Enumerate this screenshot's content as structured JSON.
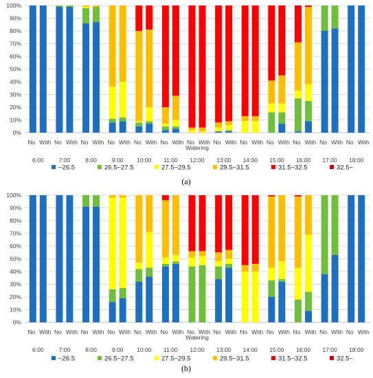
{
  "colors": {
    "c0": "#1f6fc0",
    "c1": "#70bf3c",
    "c2": "#ffff00",
    "c3": "#ffbf00",
    "c4": "#ff0000",
    "c5": "#cc0000",
    "grid": "#d9d9d9",
    "axis": "#bfbfbf"
  },
  "chart_data": [
    {
      "type": "bar",
      "stacked": true,
      "caption": "(a)",
      "ylim": [
        0,
        100
      ],
      "yticks": [
        "0%",
        "10%",
        "20%",
        "30%",
        "40%",
        "50%",
        "60%",
        "70%",
        "80%",
        "90%",
        "100%"
      ],
      "xlabel": "Watering",
      "subcategories": [
        "No",
        "With"
      ],
      "times": [
        "6:00",
        "7:00",
        "8:00",
        "9:00",
        "10:00",
        "11:00",
        "12:00",
        "13:00",
        "14:00",
        "15:00",
        "16:00",
        "17:00",
        "18:00"
      ],
      "legend": [
        "~26.5",
        "26.5~27.5",
        "27.5~29.5",
        "29.5~31.5",
        "31.5~32.5",
        "32.5~"
      ],
      "grid": true,
      "bars": [
        [
          100,
          0,
          0,
          0,
          0,
          0
        ],
        [
          100,
          0,
          0,
          0,
          0,
          0
        ],
        [
          99,
          1,
          0,
          0,
          0,
          0
        ],
        [
          99,
          1,
          0,
          0,
          0,
          0
        ],
        [
          86,
          12,
          1,
          1,
          0,
          0
        ],
        [
          87,
          12,
          0,
          1,
          0,
          0
        ],
        [
          8,
          3,
          25,
          64,
          0,
          0
        ],
        [
          9,
          3,
          28,
          60,
          0,
          0
        ],
        [
          5,
          3,
          1,
          71,
          20,
          0
        ],
        [
          7,
          2,
          11,
          61,
          19,
          0
        ],
        [
          2,
          3,
          2,
          13,
          80,
          0
        ],
        [
          3,
          2,
          5,
          19,
          71,
          0
        ],
        [
          0,
          0,
          2,
          2,
          96,
          0
        ],
        [
          0,
          0,
          1,
          3,
          96,
          0
        ],
        [
          1,
          0,
          3,
          4,
          92,
          0
        ],
        [
          1,
          1,
          4,
          3,
          91,
          0
        ],
        [
          0,
          0,
          9,
          4,
          87,
          0
        ],
        [
          0,
          0,
          9,
          4,
          87,
          0
        ],
        [
          0,
          16,
          7,
          18,
          59,
          0
        ],
        [
          7,
          9,
          7,
          22,
          55,
          0
        ],
        [
          1,
          26,
          6,
          38,
          28,
          1
        ],
        [
          9,
          16,
          13,
          61,
          0,
          1
        ],
        [
          80,
          20,
          0,
          0,
          0,
          0
        ],
        [
          82,
          18,
          0,
          0,
          0,
          0
        ],
        [
          100,
          0,
          0,
          0,
          0,
          0
        ],
        [
          100,
          0,
          0,
          0,
          0,
          0
        ]
      ]
    },
    {
      "type": "bar",
      "stacked": true,
      "caption": "(b)",
      "ylim": [
        0,
        100
      ],
      "yticks": [
        "0%",
        "10%",
        "20%",
        "30%",
        "40%",
        "50%",
        "60%",
        "70%",
        "80%",
        "90%",
        "100%"
      ],
      "xlabel": "Watering",
      "subcategories": [
        "No",
        "With"
      ],
      "times": [
        "6:00",
        "7:00",
        "8:00",
        "9:00",
        "10:00",
        "11:00",
        "12:00",
        "13:00",
        "14:00",
        "15:00",
        "16:00",
        "17:00",
        "18:00"
      ],
      "legend": [
        "~26.5",
        "26.5~27.5",
        "27.5~29.5",
        "29.5~31.5",
        "31.5~32.5",
        "32.5~"
      ],
      "grid": true,
      "bars": [
        [
          100,
          0,
          0,
          0,
          0,
          0
        ],
        [
          100,
          0,
          0,
          0,
          0,
          0
        ],
        [
          100,
          0,
          0,
          0,
          0,
          0
        ],
        [
          100,
          0,
          0,
          0,
          0,
          0
        ],
        [
          91,
          9,
          0,
          0,
          0,
          0
        ],
        [
          91,
          9,
          0,
          0,
          0,
          0
        ],
        [
          16,
          10,
          72,
          2,
          0,
          0
        ],
        [
          19,
          8,
          71,
          2,
          0,
          0
        ],
        [
          32,
          10,
          5,
          53,
          0,
          0
        ],
        [
          36,
          7,
          28,
          29,
          0,
          0
        ],
        [
          44,
          2,
          5,
          45,
          4,
          0
        ],
        [
          46,
          2,
          5,
          47,
          0,
          0
        ],
        [
          0,
          44,
          7,
          5,
          44,
          0
        ],
        [
          0,
          45,
          7,
          4,
          44,
          0
        ],
        [
          34,
          10,
          4,
          7,
          45,
          0
        ],
        [
          43,
          3,
          4,
          7,
          43,
          0
        ],
        [
          0,
          0,
          40,
          5,
          55,
          0
        ],
        [
          0,
          0,
          40,
          6,
          54,
          0
        ],
        [
          20,
          13,
          10,
          56,
          1,
          0
        ],
        [
          32,
          2,
          14,
          52,
          0,
          0
        ],
        [
          0,
          18,
          25,
          56,
          1,
          0
        ],
        [
          9,
          15,
          45,
          31,
          0,
          0
        ],
        [
          38,
          62,
          0,
          0,
          0,
          0
        ],
        [
          53,
          47,
          0,
          0,
          0,
          0
        ],
        [
          100,
          0,
          0,
          0,
          0,
          0
        ],
        [
          100,
          0,
          0,
          0,
          0,
          0
        ]
      ]
    }
  ]
}
